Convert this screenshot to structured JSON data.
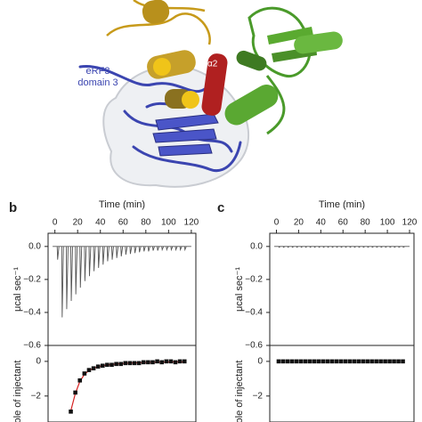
{
  "structure_labels": {
    "protein": "eRF3",
    "domain": "domain 3",
    "helix": "α2"
  },
  "panel_labels": [
    "b",
    "c"
  ],
  "chart_data": [
    {
      "type": "spike",
      "xlabel": "Time (min)",
      "ylabel": "μcal sec⁻¹",
      "xlim": [
        -6,
        124
      ],
      "xticks": [
        0,
        20,
        40,
        60,
        80,
        100,
        120
      ],
      "ylim": [
        -0.6,
        0.08
      ],
      "yticks": [
        {
          "value": 0,
          "label": "0.0"
        },
        {
          "value": -0.2,
          "label": "−0.2"
        },
        {
          "value": -0.4,
          "label": "−0.4"
        },
        {
          "value": -0.6,
          "label": "−0.6"
        }
      ],
      "color": "#555555",
      "x": [
        2,
        6,
        10,
        14,
        18,
        22,
        26,
        30,
        34,
        38,
        42,
        46,
        50,
        54,
        58,
        62,
        66,
        70,
        74,
        78,
        82,
        86,
        90,
        94,
        98,
        102,
        106,
        110,
        114
      ],
      "values": [
        -0.08,
        -0.43,
        -0.38,
        -0.33,
        -0.29,
        -0.25,
        -0.21,
        -0.18,
        -0.15,
        -0.13,
        -0.11,
        -0.09,
        -0.08,
        -0.07,
        -0.06,
        -0.05,
        -0.045,
        -0.04,
        -0.035,
        -0.03,
        -0.03,
        -0.025,
        -0.025,
        -0.02,
        -0.02,
        -0.02,
        -0.02,
        -0.02,
        -0.02
      ]
    },
    {
      "type": "scatter",
      "ylabel": "ole of injectant",
      "xlim": [
        -6,
        124
      ],
      "ylim": [
        -3.5,
        0.92
      ],
      "yticks": [
        0,
        {
          "value": -2,
          "label": "−2"
        }
      ],
      "color": "#111111",
      "fit_color": "#d62020",
      "x": [
        14,
        18,
        22,
        26,
        30,
        34,
        38,
        42,
        46,
        50,
        54,
        58,
        62,
        66,
        70,
        74,
        78,
        82,
        86,
        90,
        94,
        98,
        102,
        106,
        110,
        114
      ],
      "values": [
        -2.9,
        -1.8,
        -1.1,
        -0.7,
        -0.5,
        -0.4,
        -0.3,
        -0.25,
        -0.2,
        -0.2,
        -0.15,
        -0.15,
        -0.1,
        -0.1,
        -0.1,
        -0.1,
        -0.05,
        -0.05,
        -0.05,
        0,
        -0.05,
        0,
        0,
        -0.05,
        0,
        0
      ],
      "fit_values": [
        -2.85,
        -1.85,
        -1.15,
        -0.75,
        -0.52,
        -0.4,
        -0.31,
        -0.25,
        -0.21,
        -0.18,
        -0.15,
        -0.13,
        -0.11,
        -0.1,
        -0.09,
        -0.08,
        -0.07,
        -0.06,
        -0.05,
        -0.05,
        -0.04,
        -0.04,
        -0.03,
        -0.03,
        -0.03,
        -0.03
      ]
    },
    {
      "type": "spike",
      "xlabel": "Time (min)",
      "ylabel": "μcal sec⁻¹",
      "xlim": [
        -6,
        124
      ],
      "xticks": [
        0,
        20,
        40,
        60,
        80,
        100,
        120
      ],
      "ylim": [
        -0.6,
        0.08
      ],
      "yticks": [
        {
          "value": 0,
          "label": "0.0"
        },
        {
          "value": -0.2,
          "label": "−0.2"
        },
        {
          "value": -0.4,
          "label": "−0.4"
        },
        {
          "value": -0.6,
          "label": "−0.6"
        }
      ],
      "color": "#555555",
      "x": [
        2,
        6,
        10,
        14,
        18,
        22,
        26,
        30,
        34,
        38,
        42,
        46,
        50,
        54,
        58,
        62,
        66,
        70,
        74,
        78,
        82,
        86,
        90,
        94,
        98,
        102,
        106,
        110,
        114
      ],
      "values": [
        -0.005,
        -0.005,
        -0.005,
        -0.005,
        -0.005,
        -0.005,
        -0.005,
        -0.005,
        -0.005,
        -0.005,
        -0.005,
        -0.005,
        -0.005,
        -0.005,
        -0.005,
        -0.005,
        -0.005,
        -0.005,
        -0.005,
        -0.005,
        -0.005,
        -0.005,
        -0.005,
        -0.005,
        -0.005,
        -0.005,
        -0.005,
        -0.005,
        -0.005
      ]
    },
    {
      "type": "scatter",
      "ylabel": "ole of injectant",
      "xlim": [
        -6,
        124
      ],
      "ylim": [
        -3.5,
        0.92
      ],
      "yticks": [
        0,
        {
          "value": -2,
          "label": "−2"
        }
      ],
      "color": "#111111",
      "x": [
        2,
        6,
        10,
        14,
        18,
        22,
        26,
        30,
        34,
        38,
        42,
        46,
        50,
        54,
        58,
        62,
        66,
        70,
        74,
        78,
        82,
        86,
        90,
        94,
        98,
        102,
        106,
        110,
        114
      ],
      "values": [
        0,
        0,
        0,
        0,
        0,
        0,
        0,
        0,
        0,
        0,
        0,
        0,
        0,
        0,
        0,
        0,
        0,
        0,
        0,
        0,
        0,
        0,
        0,
        0,
        0,
        0,
        0,
        0,
        0
      ]
    }
  ]
}
